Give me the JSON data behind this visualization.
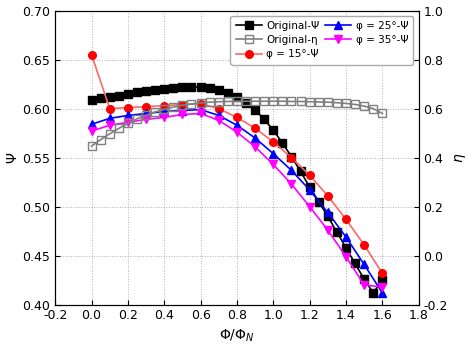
{
  "original_psi_x": [
    0.0,
    0.05,
    0.1,
    0.15,
    0.2,
    0.25,
    0.3,
    0.35,
    0.4,
    0.45,
    0.5,
    0.55,
    0.6,
    0.65,
    0.7,
    0.75,
    0.8,
    0.85,
    0.9,
    0.95,
    1.0,
    1.05,
    1.1,
    1.15,
    1.2,
    1.25,
    1.3,
    1.35,
    1.4,
    1.45,
    1.5,
    1.55,
    1.6
  ],
  "original_psi_y": [
    0.609,
    0.611,
    0.612,
    0.613,
    0.615,
    0.617,
    0.618,
    0.619,
    0.62,
    0.621,
    0.622,
    0.622,
    0.622,
    0.621,
    0.619,
    0.616,
    0.612,
    0.606,
    0.599,
    0.589,
    0.578,
    0.565,
    0.551,
    0.536,
    0.52,
    0.505,
    0.49,
    0.474,
    0.458,
    0.442,
    0.426,
    0.412,
    0.425
  ],
  "original_eta_x": [
    0.0,
    0.05,
    0.1,
    0.15,
    0.2,
    0.25,
    0.3,
    0.35,
    0.4,
    0.45,
    0.5,
    0.55,
    0.6,
    0.65,
    0.7,
    0.75,
    0.8,
    0.85,
    0.9,
    0.95,
    1.0,
    1.05,
    1.1,
    1.15,
    1.2,
    1.25,
    1.3,
    1.35,
    1.4,
    1.45,
    1.5,
    1.55,
    1.6
  ],
  "original_eta_y": [
    0.447,
    0.473,
    0.497,
    0.519,
    0.54,
    0.558,
    0.573,
    0.586,
    0.597,
    0.606,
    0.614,
    0.619,
    0.623,
    0.626,
    0.628,
    0.629,
    0.63,
    0.63,
    0.63,
    0.63,
    0.63,
    0.63,
    0.629,
    0.629,
    0.628,
    0.627,
    0.626,
    0.624,
    0.621,
    0.617,
    0.61,
    0.6,
    0.58
  ],
  "phi15_x": [
    0.0,
    0.1,
    0.2,
    0.3,
    0.4,
    0.5,
    0.6,
    0.7,
    0.8,
    0.9,
    1.0,
    1.1,
    1.2,
    1.3,
    1.4,
    1.5,
    1.6
  ],
  "phi15_y": [
    0.655,
    0.6,
    0.601,
    0.602,
    0.603,
    0.604,
    0.605,
    0.6,
    0.591,
    0.58,
    0.566,
    0.55,
    0.532,
    0.511,
    0.487,
    0.461,
    0.432
  ],
  "phi25_x": [
    0.0,
    0.1,
    0.2,
    0.3,
    0.4,
    0.5,
    0.6,
    0.7,
    0.8,
    0.9,
    1.0,
    1.1,
    1.2,
    1.3,
    1.4,
    1.5,
    1.6
  ],
  "phi25_y": [
    0.584,
    0.59,
    0.593,
    0.595,
    0.597,
    0.598,
    0.599,
    0.593,
    0.583,
    0.57,
    0.554,
    0.537,
    0.517,
    0.494,
    0.469,
    0.441,
    0.412
  ],
  "phi35_x": [
    0.0,
    0.1,
    0.2,
    0.3,
    0.4,
    0.5,
    0.6,
    0.7,
    0.8,
    0.9,
    1.0,
    1.1,
    1.2,
    1.3,
    1.4,
    1.5,
    1.6
  ],
  "phi35_y": [
    0.577,
    0.583,
    0.586,
    0.589,
    0.591,
    0.594,
    0.595,
    0.588,
    0.576,
    0.561,
    0.543,
    0.523,
    0.5,
    0.476,
    0.449,
    0.42,
    0.418
  ],
  "xlim": [
    -0.2,
    1.8
  ],
  "ylim_left": [
    0.4,
    0.7
  ],
  "ylim_right": [
    -0.2,
    1.0
  ],
  "xlabel": "Φ/Φ_N",
  "ylabel_left": "Ψ",
  "ylabel_right": "η",
  "xticks": [
    -0.2,
    0.0,
    0.2,
    0.4,
    0.6,
    0.8,
    1.0,
    1.2,
    1.4,
    1.6,
    1.8
  ],
  "yticks_left": [
    0.4,
    0.45,
    0.5,
    0.55,
    0.6,
    0.65,
    0.7
  ],
  "yticks_right": [
    -0.2,
    0.0,
    0.2,
    0.4,
    0.6,
    0.8,
    1.0
  ],
  "color_original_psi": "#000000",
  "color_original_eta": "#808080",
  "color_phi15": "#ff0000",
  "color_phi25": "#0000ff",
  "color_phi35": "#ff00ff",
  "legend_labels": [
    "Original-Ψ",
    "Original-η",
    "φ = 15°-Ψ",
    "φ = 25°-Ψ",
    "φ = 35°-Ψ"
  ],
  "bg_color": "#ffffff",
  "grid_color": "#b0b0b0"
}
